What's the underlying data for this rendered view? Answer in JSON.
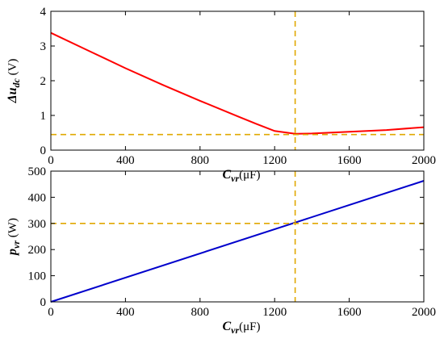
{
  "chart_data": [
    {
      "type": "line",
      "xlabel": {
        "symbol": "C",
        "sub": "vr",
        "unit": "(μF)"
      },
      "ylabel": {
        "symbol": "Δu",
        "sub": "dc",
        "unit": "(V)"
      },
      "xlim": [
        0,
        2000
      ],
      "ylim": [
        0,
        4
      ],
      "xticks": [
        "0",
        "400",
        "800",
        "1200",
        "1600",
        "2000"
      ],
      "yticks": [
        "0",
        "1",
        "2",
        "3",
        "4"
      ],
      "grid": false,
      "series": [
        {
          "color": "#ff0000",
          "x": [
            0,
            200,
            400,
            600,
            800,
            1000,
            1100,
            1200,
            1310,
            1400,
            1600,
            1800,
            2000
          ],
          "y": [
            3.38,
            2.87,
            2.36,
            1.88,
            1.42,
            0.98,
            0.76,
            0.55,
            0.47,
            0.48,
            0.53,
            0.58,
            0.66
          ]
        }
      ],
      "reference_lines": {
        "color": "#e0a800",
        "x": 1310,
        "y": 0.45
      }
    },
    {
      "type": "line",
      "xlabel": {
        "symbol": "C",
        "sub": "vr",
        "unit": "(μF)"
      },
      "ylabel": {
        "symbol": "p",
        "sub": "vr",
        "unit": "(W)"
      },
      "xlim": [
        0,
        2000
      ],
      "ylim": [
        0,
        500
      ],
      "xticks": [
        "0",
        "400",
        "800",
        "1200",
        "1600",
        "2000"
      ],
      "yticks": [
        "0",
        "100",
        "200",
        "300",
        "400",
        "500"
      ],
      "grid": false,
      "series": [
        {
          "color": "#0000cc",
          "x": [
            0,
            2000
          ],
          "y": [
            0,
            463
          ]
        }
      ],
      "reference_lines": {
        "color": "#e0a800",
        "x": 1310,
        "y": 300
      }
    }
  ]
}
